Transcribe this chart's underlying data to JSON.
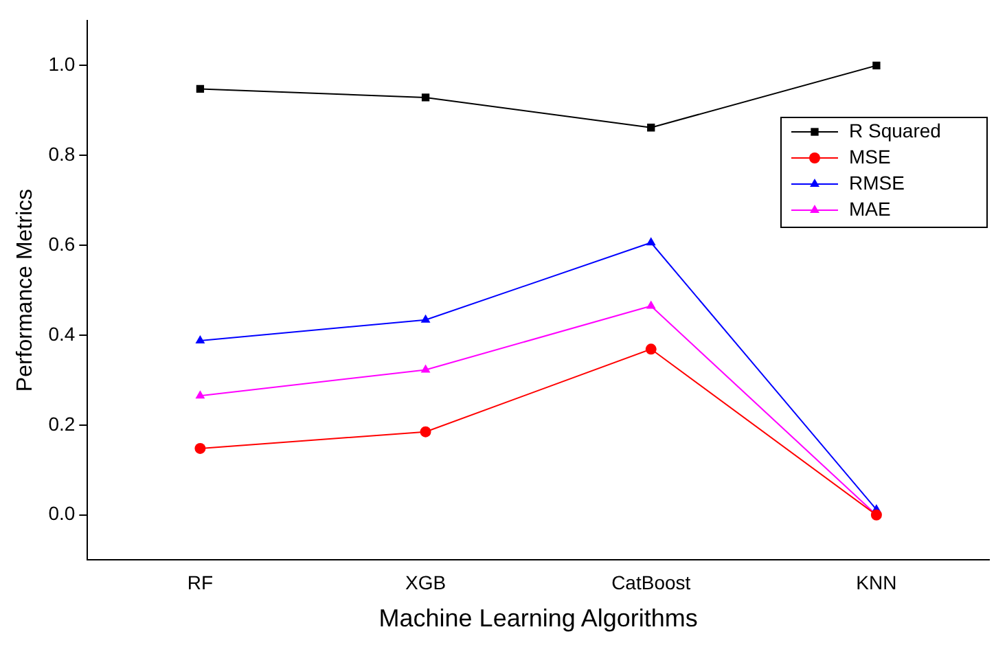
{
  "chart_data": {
    "type": "line",
    "xlabel": "Machine Learning Algorithms",
    "ylabel": "Performance Metrics",
    "categories": [
      "RF",
      "XGB",
      "CatBoost",
      "KNN"
    ],
    "series": [
      {
        "name": "R Squared",
        "color": "#000000",
        "marker": "square",
        "values": [
          0.948,
          0.929,
          0.862,
          1.0
        ]
      },
      {
        "name": "MSE",
        "color": "#ff0000",
        "marker": "circle",
        "values": [
          0.148,
          0.185,
          0.369,
          0.0
        ]
      },
      {
        "name": "RMSE",
        "color": "#0000ff",
        "marker": "triangle",
        "values": [
          0.388,
          0.434,
          0.606,
          0.012
        ]
      },
      {
        "name": "MAE",
        "color": "#ff00ff",
        "marker": "triangle",
        "values": [
          0.265,
          0.323,
          0.465,
          0.0
        ]
      }
    ],
    "ylim": [
      -0.1,
      1.1
    ],
    "yticks": [
      {
        "value": 0,
        "label": "0.0"
      },
      0.2,
      0.4,
      0.6,
      0.8,
      {
        "value": 1,
        "label": "1.0"
      }
    ],
    "grid": false,
    "legend": "top right"
  }
}
